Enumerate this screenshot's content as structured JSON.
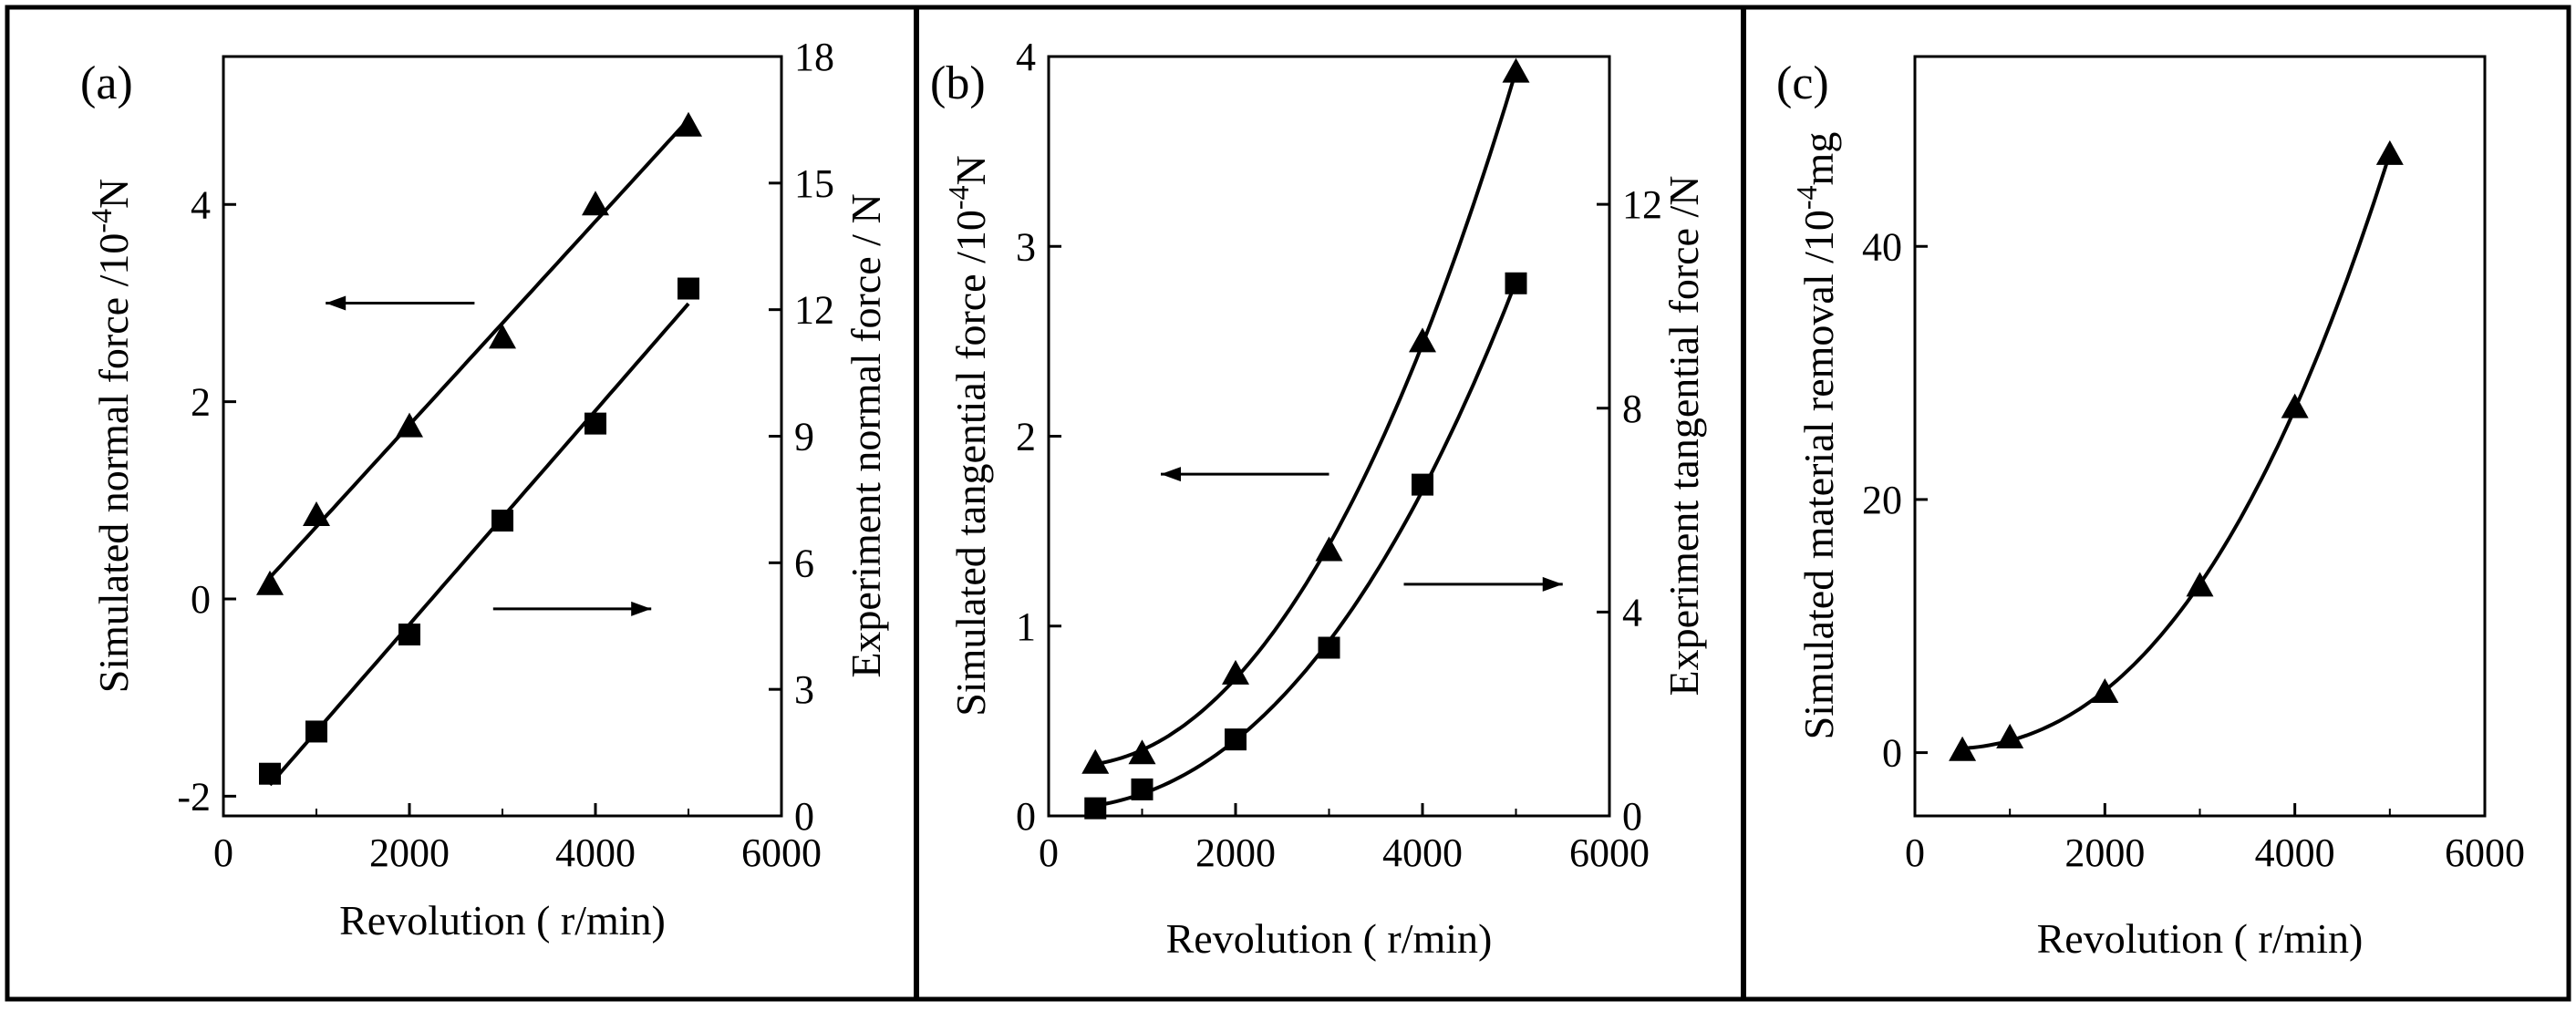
{
  "figure": {
    "panel_labels": [
      "(a)",
      "(b)",
      "(c)"
    ]
  },
  "chart_data": [
    {
      "panel": "(a)",
      "type": "scatter",
      "xlabel": "Revolution ( r/min)",
      "ylabel": "Simulated normal force /10",
      "ylabel_exp": "-4",
      "ylabel_unit": "N",
      "y2label": "Experiment normal force / N",
      "xlim": [
        0,
        6000
      ],
      "ylim": [
        -2.2,
        5.5
      ],
      "y2lim": [
        0,
        18
      ],
      "xticks": [
        "0",
        "2000",
        "4000",
        "6000"
      ],
      "yticks": [
        "-2",
        "0",
        "2",
        "4"
      ],
      "y2ticks": [
        "0",
        "3",
        "6",
        "9",
        "12",
        "15",
        "18"
      ],
      "fit": "linear",
      "series": [
        {
          "name": "Simulated normal force",
          "marker": "triangle",
          "axis": "left",
          "x": [
            500,
            1000,
            2000,
            3000,
            4000,
            5000
          ],
          "y": [
            0.15,
            0.85,
            1.75,
            2.65,
            4.0,
            4.8
          ]
        },
        {
          "name": "Experiment normal force",
          "marker": "square",
          "axis": "right",
          "x": [
            500,
            1000,
            2000,
            3000,
            4000,
            5000
          ],
          "y": [
            1.0,
            2.0,
            4.3,
            7.0,
            9.3,
            12.5
          ]
        }
      ],
      "arrows": [
        {
          "points_to": "left",
          "x_from": 2700,
          "x_to": 1100,
          "y": 3.0
        },
        {
          "points_to": "right",
          "x_from": 2900,
          "x_to": 4600,
          "y": -0.1
        }
      ]
    },
    {
      "panel": "(b)",
      "type": "scatter",
      "xlabel": "Revolution ( r/min)",
      "ylabel": "Simulated tangential force /10",
      "ylabel_exp": "-4",
      "ylabel_unit": "N",
      "y2label": "Experiment  tangential force /N",
      "xlim": [
        0,
        6000
      ],
      "ylim": [
        0,
        4
      ],
      "y2lim": [
        0,
        14.9
      ],
      "xticks": [
        "0",
        "2000",
        "4000",
        "6000"
      ],
      "yticks": [
        "0",
        "1",
        "2",
        "3",
        "4"
      ],
      "y2ticks": [
        "0",
        "4",
        "8",
        "12"
      ],
      "fit": "cubic",
      "series": [
        {
          "name": "Simulated tangential force",
          "marker": "triangle",
          "axis": "left",
          "x": [
            500,
            1000,
            2000,
            3000,
            4000,
            5000
          ],
          "y": [
            0.28,
            0.33,
            0.75,
            1.4,
            2.5,
            3.92
          ]
        },
        {
          "name": "Experiment tangential force",
          "marker": "square",
          "axis": "right",
          "x": [
            500,
            1000,
            2000,
            3000,
            4000,
            5000
          ],
          "y": [
            0.15,
            0.52,
            1.5,
            3.3,
            6.5,
            10.45
          ]
        }
      ],
      "arrows": [
        {
          "points_to": "left",
          "x_from": 3000,
          "x_to": 1200,
          "y": 1.8
        },
        {
          "points_to": "right",
          "x_from": 3800,
          "x_to": 5500,
          "y": 1.22
        }
      ]
    },
    {
      "panel": "(c)",
      "type": "scatter",
      "xlabel": "Revolution ( r/min)",
      "ylabel": "Simulated material removal /10",
      "ylabel_exp": "-4",
      "ylabel_unit": "mg",
      "xlim": [
        0,
        6000
      ],
      "ylim": [
        -5,
        55
      ],
      "xticks": [
        "0",
        "2000",
        "4000",
        "6000"
      ],
      "yticks": [
        "0",
        "20",
        "40"
      ],
      "fit": "cubic",
      "series": [
        {
          "name": "Simulated material removal",
          "marker": "triangle",
          "axis": "left",
          "x": [
            500,
            1000,
            2000,
            3000,
            4000,
            5000
          ],
          "y": [
            0.2,
            1.2,
            4.8,
            13.2,
            27.3,
            47.3
          ]
        }
      ]
    }
  ]
}
